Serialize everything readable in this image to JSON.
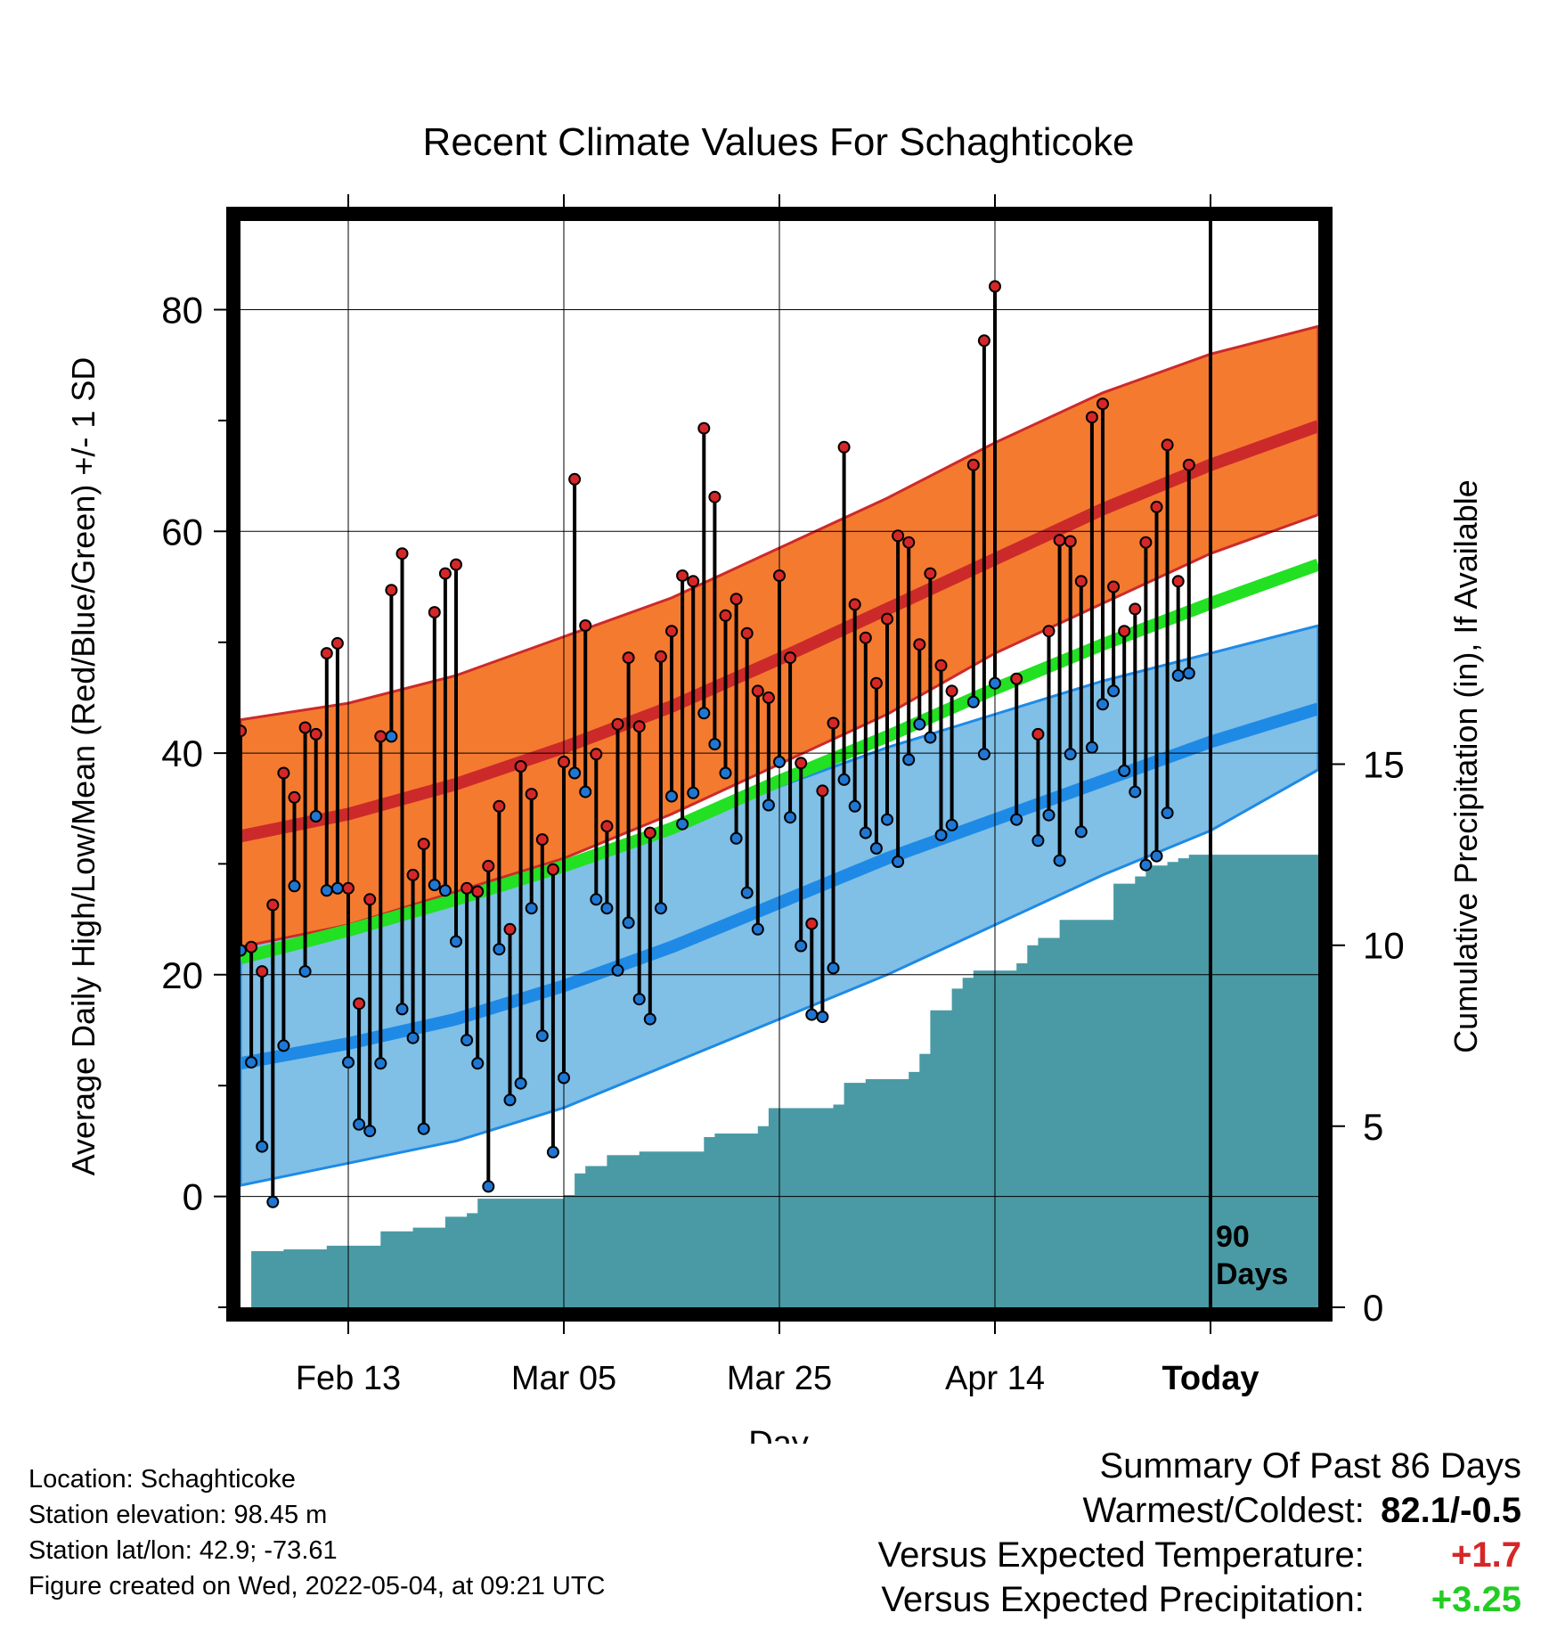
{
  "chart_data": {
    "type": "line",
    "title": "Recent Climate Values For Schaghticoke",
    "xlabel": "Day",
    "ylabel": "Average Daily High/Low/Mean (Red/Blue/Green) +/- 1 SD",
    "y2label": "Cumulative Precipitation (in), If Available",
    "xlim": [
      0,
      100
    ],
    "ylim": [
      -10,
      88
    ],
    "y2lim": [
      0,
      30
    ],
    "x_ticks": [
      {
        "x": 10,
        "label": "Feb 13"
      },
      {
        "x": 30,
        "label": "Mar 05"
      },
      {
        "x": 50,
        "label": "Mar 25"
      },
      {
        "x": 70,
        "label": "Apr 14"
      },
      {
        "x": 90,
        "label": "Today"
      }
    ],
    "y_ticks": [
      0,
      20,
      40,
      60,
      80
    ],
    "y2_ticks": [
      0,
      5,
      10,
      15
    ],
    "today_marker": {
      "x": 90,
      "label_line1": "90",
      "label_line2": "Days"
    },
    "normals": {
      "x": [
        0,
        10,
        20,
        30,
        40,
        50,
        60,
        70,
        80,
        90,
        100
      ],
      "high_mean": [
        32.5,
        34.5,
        37.2,
        40.5,
        44.2,
        48.5,
        53.0,
        57.5,
        62.0,
        66.0,
        69.5
      ],
      "high_upper": [
        43.0,
        44.5,
        47.0,
        50.5,
        54.0,
        58.5,
        63.0,
        68.0,
        72.5,
        76.0,
        78.5
      ],
      "high_lower": [
        22.5,
        24.5,
        27.5,
        30.5,
        34.5,
        39.0,
        43.5,
        49.0,
        53.5,
        58.0,
        61.5
      ],
      "low_mean": [
        12.0,
        13.8,
        16.0,
        19.0,
        22.5,
        26.5,
        30.5,
        34.0,
        37.5,
        41.0,
        44.0
      ],
      "low_upper": [
        24.5,
        25.5,
        27.5,
        30.0,
        33.0,
        37.0,
        40.5,
        43.5,
        46.5,
        49.0,
        51.5
      ],
      "low_lower": [
        1.0,
        3.0,
        5.0,
        8.0,
        12.0,
        16.0,
        20.0,
        24.5,
        29.0,
        33.0,
        38.5
      ],
      "mean": [
        21.5,
        24.0,
        26.8,
        29.8,
        33.2,
        37.5,
        41.5,
        45.8,
        49.8,
        53.5,
        57.0
      ]
    },
    "series": [
      {
        "name": "High",
        "color": "#d62728",
        "values": [
          42.0,
          22.5,
          20.3,
          26.3,
          38.2,
          36.0,
          42.3,
          41.7,
          49.0,
          49.9,
          27.8,
          17.4,
          26.8,
          41.5,
          54.7,
          58.0,
          29.0,
          31.8,
          52.7,
          56.2,
          57.0,
          27.8,
          27.5,
          29.8,
          35.2,
          24.1,
          38.8,
          36.3,
          32.2,
          29.5,
          39.2,
          64.7,
          51.5,
          39.9,
          33.4,
          42.6,
          48.6,
          42.4,
          32.8,
          48.7,
          51.0,
          56.0,
          55.5,
          69.3,
          63.1,
          52.4,
          53.9,
          50.8,
          45.6,
          45.0,
          56.0,
          48.6,
          39.1,
          24.6,
          36.6,
          42.7,
          67.6,
          53.4,
          50.4,
          46.3,
          52.1,
          59.6,
          59.0,
          49.8,
          56.2,
          47.9,
          45.6,
          null,
          66.0,
          77.2,
          82.1,
          null,
          46.7,
          null,
          41.7,
          51.0,
          59.2,
          59.1,
          55.5,
          70.3,
          71.5,
          55.0,
          51.0,
          53.0,
          59.0,
          62.2,
          67.8,
          55.5,
          66.0
        ]
      },
      {
        "name": "Low",
        "color": "#1f77d4",
        "values": [
          22.2,
          12.1,
          4.5,
          -0.5,
          13.6,
          28.0,
          20.3,
          34.3,
          27.6,
          27.8,
          12.1,
          6.5,
          5.9,
          12.0,
          41.5,
          16.9,
          14.3,
          6.1,
          28.1,
          27.6,
          23.0,
          14.1,
          12.0,
          0.9,
          22.3,
          8.7,
          10.2,
          26.0,
          14.5,
          4.0,
          10.7,
          38.2,
          36.5,
          26.8,
          26.0,
          20.4,
          24.7,
          17.8,
          16.0,
          26.0,
          36.1,
          33.6,
          36.4,
          43.6,
          40.8,
          38.2,
          32.3,
          27.4,
          24.1,
          35.3,
          39.2,
          34.2,
          22.6,
          16.4,
          16.2,
          20.6,
          37.6,
          35.2,
          32.8,
          31.4,
          34.0,
          30.2,
          39.4,
          42.6,
          41.4,
          32.6,
          33.5,
          null,
          44.6,
          39.9,
          46.3,
          null,
          34.0,
          null,
          32.1,
          34.4,
          30.3,
          39.9,
          32.9,
          40.5,
          44.4,
          45.6,
          38.4,
          36.5,
          29.9,
          30.7,
          34.6,
          47.0,
          47.2
        ]
      }
    ],
    "precipitation": {
      "x": [
        0,
        1,
        4,
        8,
        10,
        13,
        16,
        19,
        21,
        22,
        30,
        31,
        32,
        34,
        37,
        43,
        44,
        48,
        49,
        55,
        56,
        58,
        62,
        63,
        64,
        66,
        67,
        68,
        72,
        73,
        74,
        76,
        81,
        83,
        84,
        86,
        87,
        88,
        100
      ],
      "values": [
        0,
        1.55,
        1.6,
        1.7,
        1.7,
        2.1,
        2.2,
        2.5,
        2.6,
        3.0,
        3.1,
        3.7,
        3.9,
        4.2,
        4.3,
        4.7,
        4.8,
        5.0,
        5.5,
        5.6,
        6.2,
        6.3,
        6.5,
        7.0,
        8.2,
        8.8,
        9.1,
        9.3,
        9.5,
        10.0,
        10.2,
        10.7,
        11.7,
        11.9,
        12.2,
        12.3,
        12.4,
        12.5,
        12.5
      ],
      "color": "#4a9aa5"
    }
  },
  "footer": {
    "location": "Location: Schaghticoke",
    "elevation": "Station elevation: 98.45 m",
    "latlon": "Station lat/lon: 42.9; -73.61",
    "created": "Figure created on Wed, 2022-05-04, at 09:21 UTC"
  },
  "summary": {
    "heading": "Summary Of Past 86 Days",
    "warmest_coldest_label": "Warmest/Coldest:",
    "warmest_coldest_value": "82.1/-0.5",
    "temp_label": "Versus Expected Temperature:",
    "temp_value": "+1.7",
    "precip_label": "Versus Expected Precipitation:",
    "precip_value": "+3.25"
  }
}
